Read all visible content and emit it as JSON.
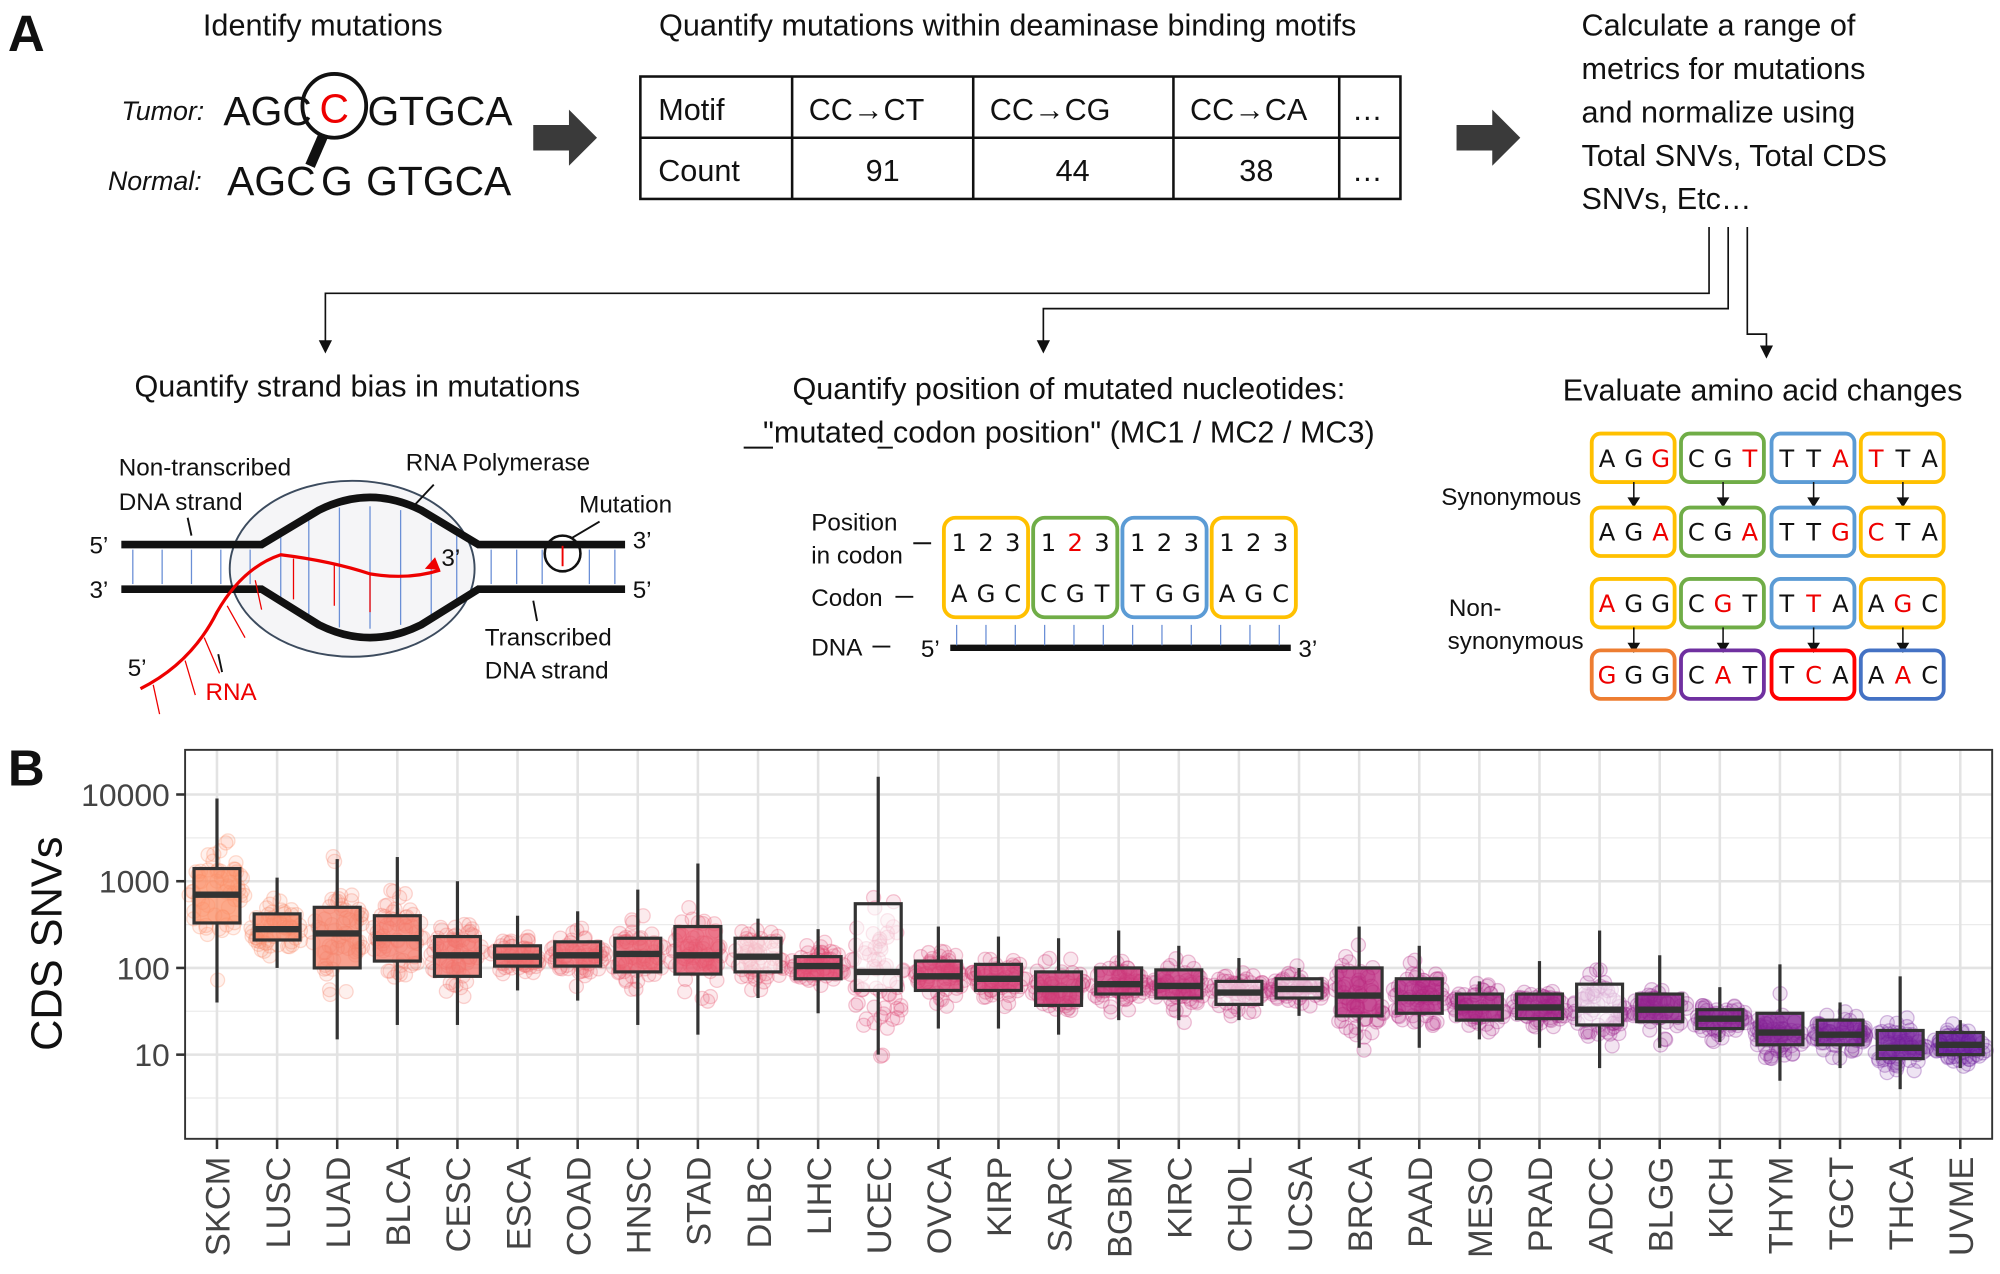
{
  "panel_a": {
    "label": "A",
    "identify": {
      "title": "Identify mutations",
      "tumor_label": "Tumor:",
      "normal_label": "Normal:",
      "tumor_prefix": "AGC",
      "tumor_mut": "C",
      "tumor_suffix": "GTGCA",
      "normal_prefix": "AGC",
      "normal_base": "G",
      "normal_suffix": "GTGCA"
    },
    "motifs": {
      "title": "Quantify mutations within deaminase binding motifs",
      "headers": [
        "Motif",
        "CC→CT",
        "CC→CG",
        "CC→CA",
        "…"
      ],
      "row": [
        "Count",
        "91",
        "44",
        "38",
        "…"
      ]
    },
    "metrics": {
      "lines": [
        "Calculate a range of",
        "metrics for mutations",
        "and normalize using",
        "Total SNVs, Total CDS",
        "SNVs, Etc…"
      ]
    },
    "strand": {
      "title": "Quantify strand bias in mutations",
      "non_transcribed": [
        "Non-transcribed",
        "DNA strand"
      ],
      "polymerase": "RNA Polymerase",
      "mutation": "Mutation",
      "transcribed": [
        "Transcribed",
        "DNA strand"
      ],
      "rna": "RNA",
      "five_prime": "5’",
      "three_prime": "3’"
    },
    "position": {
      "title_line1": "Quantify position of mutated nucleotides:",
      "title_line2": "\"mutated codon position\" (MC1 / MC2 / MC3)",
      "position_label": [
        "Position",
        "in codon"
      ],
      "codon_label": "Codon",
      "dna_label": "DNA",
      "positions": [
        "1",
        "2",
        "3"
      ],
      "highlight_codon": 1,
      "highlight_position": 1,
      "codons": [
        {
          "bases": [
            "A",
            "G",
            "C"
          ],
          "color": "#ffc000"
        },
        {
          "bases": [
            "C",
            "G",
            "T"
          ],
          "color": "#70ad47"
        },
        {
          "bases": [
            "T",
            "G",
            "G"
          ],
          "color": "#5b9bd5"
        },
        {
          "bases": [
            "A",
            "G",
            "C"
          ],
          "color": "#ffc000"
        }
      ]
    },
    "amino": {
      "title": "Evaluate amino acid changes",
      "synonymous_label": "Synonymous",
      "nonsyn_label": [
        "Non-",
        "synonymous"
      ],
      "rows": [
        [
          {
            "b": [
              "A",
              "G",
              "G"
            ],
            "m": 2,
            "c": "#ffc000"
          },
          {
            "b": [
              "C",
              "G",
              "T"
            ],
            "m": 2,
            "c": "#70ad47"
          },
          {
            "b": [
              "T",
              "T",
              "A"
            ],
            "m": 2,
            "c": "#5b9bd5"
          },
          {
            "b": [
              "T",
              "T",
              "A"
            ],
            "m": 0,
            "c": "#ffc000"
          }
        ],
        [
          {
            "b": [
              "A",
              "G",
              "A"
            ],
            "m": 2,
            "c": "#ffc000"
          },
          {
            "b": [
              "C",
              "G",
              "A"
            ],
            "m": 2,
            "c": "#70ad47"
          },
          {
            "b": [
              "T",
              "T",
              "G"
            ],
            "m": 2,
            "c": "#5b9bd5"
          },
          {
            "b": [
              "C",
              "T",
              "A"
            ],
            "m": 0,
            "c": "#ffc000"
          }
        ],
        [
          {
            "b": [
              "A",
              "G",
              "G"
            ],
            "m": 0,
            "c": "#ffc000"
          },
          {
            "b": [
              "C",
              "G",
              "T"
            ],
            "m": 1,
            "c": "#70ad47"
          },
          {
            "b": [
              "T",
              "T",
              "A"
            ],
            "m": 1,
            "c": "#5b9bd5"
          },
          {
            "b": [
              "A",
              "G",
              "C"
            ],
            "m": 1,
            "c": "#ffc000"
          }
        ],
        [
          {
            "b": [
              "G",
              "G",
              "G"
            ],
            "m": 0,
            "c": "#ed7d31"
          },
          {
            "b": [
              "C",
              "A",
              "T"
            ],
            "m": 1,
            "c": "#7030a0"
          },
          {
            "b": [
              "T",
              "C",
              "A"
            ],
            "m": 1,
            "c": "#ff0000"
          },
          {
            "b": [
              "A",
              "A",
              "C"
            ],
            "m": 1,
            "c": "#4472c4"
          }
        ]
      ]
    }
  },
  "panel_b": {
    "label": "B"
  },
  "chart_data": {
    "type": "box",
    "title": "",
    "xlabel": "",
    "ylabel": "CDS SNVs",
    "yscale": "log10",
    "ylim": [
      1,
      30000
    ],
    "yticks": [
      10,
      100,
      1000,
      10000
    ],
    "ytick_labels": [
      "10",
      "100",
      "1000",
      "10000"
    ],
    "grid": true,
    "palette": [
      "#fb8f67",
      "#e34a6f",
      "#b7267f",
      "#6b1c9d"
    ],
    "categories": [
      "SKCM",
      "LUSC",
      "LUAD",
      "BLCA",
      "CESC",
      "ESCA",
      "COAD",
      "HNSC",
      "STAD",
      "DLBC",
      "LIHC",
      "UCEC",
      "OVCA",
      "KIRP",
      "SARC",
      "BGBM",
      "KIRC",
      "CHOL",
      "UCSA",
      "BRCA",
      "PAAD",
      "MESO",
      "PRAD",
      "ADCC",
      "BLGG",
      "KICH",
      "THYM",
      "TGCT",
      "THCA",
      "UVME"
    ],
    "median": [
      700,
      280,
      250,
      220,
      140,
      135,
      140,
      145,
      140,
      135,
      105,
      90,
      80,
      75,
      57,
      65,
      62,
      52,
      57,
      48,
      45,
      35,
      35,
      33,
      33,
      26,
      18,
      17,
      12,
      13
    ],
    "q1": [
      330,
      210,
      100,
      120,
      80,
      105,
      105,
      90,
      85,
      90,
      75,
      55,
      55,
      55,
      37,
      50,
      45,
      38,
      45,
      28,
      30,
      25,
      26,
      22,
      24,
      20,
      13,
      13,
      9,
      10
    ],
    "q3": [
      1400,
      420,
      500,
      400,
      230,
      180,
      200,
      220,
      300,
      220,
      135,
      550,
      120,
      110,
      90,
      100,
      95,
      70,
      75,
      100,
      75,
      50,
      50,
      65,
      50,
      33,
      30,
      25,
      19,
      18
    ],
    "whisker_low": [
      40,
      100,
      15,
      22,
      22,
      55,
      42,
      22,
      17,
      45,
      30,
      10,
      20,
      20,
      17,
      25,
      25,
      25,
      28,
      12,
      12,
      15,
      12,
      7,
      12,
      14,
      5,
      7,
      4,
      7
    ],
    "whisker_high": [
      9000,
      1100,
      1800,
      1900,
      1000,
      400,
      450,
      800,
      1600,
      370,
      280,
      16000,
      300,
      230,
      220,
      270,
      180,
      130,
      100,
      300,
      180,
      70,
      120,
      270,
      140,
      60,
      110,
      40,
      80,
      25
    ]
  }
}
